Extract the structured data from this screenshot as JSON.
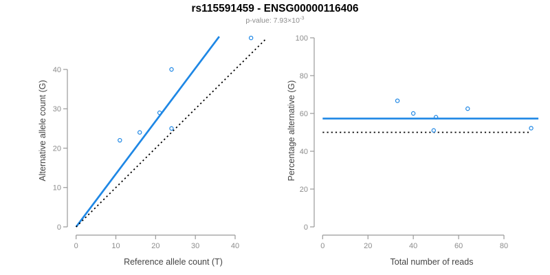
{
  "header": {
    "title": "rs115591459 - ENSG00000116406",
    "pvalue_label": "p-value: ",
    "pvalue_mantissa": "7.93",
    "times_symbol": "×",
    "pvalue_base": "10",
    "pvalue_exponent": "-3"
  },
  "colors": {
    "accent_blue": "#1E87E5",
    "axis_line": "#999999",
    "tick_label": "#8C8C8C",
    "axis_title": "#444444",
    "identity_line": "#000000",
    "title_text": "#000000"
  },
  "chart_data": [
    {
      "id": "allele-counts",
      "type": "scatter",
      "xlabel": "Reference allele count (T)",
      "ylabel": "Alternative allele count (G)",
      "xticks": [
        0,
        10,
        20,
        30,
        40
      ],
      "yticks": [
        0,
        10,
        20,
        30,
        40
      ],
      "xlim": [
        0,
        47.7
      ],
      "ylim": [
        0,
        48.5
      ],
      "grid": false,
      "points": [
        [
          11,
          22
        ],
        [
          16,
          24
        ],
        [
          21,
          29
        ],
        [
          24,
          25
        ],
        [
          24,
          40
        ],
        [
          44,
          48
        ]
      ],
      "lines": [
        {
          "name": "fitted-ratio-line",
          "style": "solid",
          "color_key": "accent_blue",
          "x1": 0,
          "y1": 0,
          "x2": 36,
          "y2": 48.35
        },
        {
          "name": "identity-line",
          "style": "dotted",
          "color_key": "identity_line",
          "x1": 0,
          "y1": 0,
          "x2": 47.7,
          "y2": 47.7
        }
      ]
    },
    {
      "id": "percentage-vs-reads",
      "type": "scatter",
      "xlabel": "Total number of reads",
      "ylabel": "Percentage alternative (G)",
      "xticks": [
        0,
        20,
        40,
        60,
        80
      ],
      "yticks": [
        0,
        20,
        40,
        60,
        80,
        100
      ],
      "xlim": [
        0,
        95.2
      ],
      "ylim": [
        0,
        100
      ],
      "grid": false,
      "points": [
        [
          33,
          66.7
        ],
        [
          40,
          60
        ],
        [
          49,
          51
        ],
        [
          50,
          58
        ],
        [
          64,
          62.5
        ],
        [
          92,
          52.2
        ]
      ],
      "lines": [
        {
          "name": "mean-percentage-line",
          "style": "solid",
          "color_key": "accent_blue",
          "x1": 0,
          "y1": 57.3,
          "x2": 95.2,
          "y2": 57.3
        },
        {
          "name": "expected-50-line",
          "style": "dotted",
          "color_key": "identity_line",
          "x1": 0,
          "y1": 50,
          "x2": 91.2,
          "y2": 50
        }
      ]
    }
  ]
}
